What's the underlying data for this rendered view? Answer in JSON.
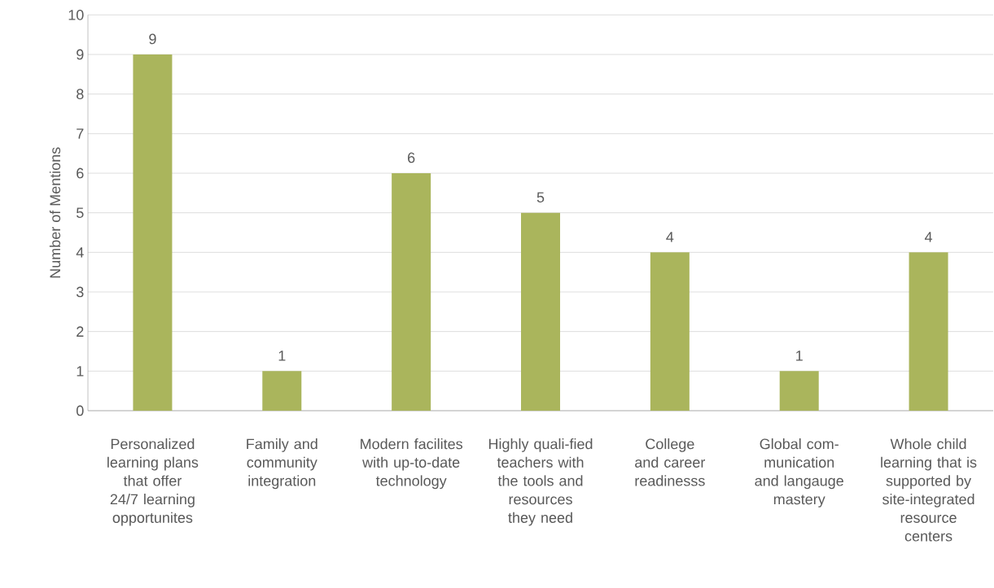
{
  "chart_data": {
    "type": "bar",
    "ylabel": "Number of Mentions",
    "categories": [
      "Personalized learning plans that offer 24/7 learning opportunites",
      "Family and community integration",
      "Modern facilites with up-to-date technology",
      "Highly quali-fied teachers with the tools and resources they need",
      "College and career readinesss",
      "Global com-munication and langauge mastery",
      "Whole child learning that is supported by site-integrated resource centers"
    ],
    "values": [
      9,
      1,
      6,
      5,
      4,
      1,
      4
    ],
    "color": "#aab55c",
    "ylim": [
      0,
      10
    ],
    "yticks": [
      0,
      1,
      2,
      3,
      4,
      5,
      6,
      7,
      8,
      9,
      10
    ],
    "grid": "y",
    "data_labels": true
  }
}
